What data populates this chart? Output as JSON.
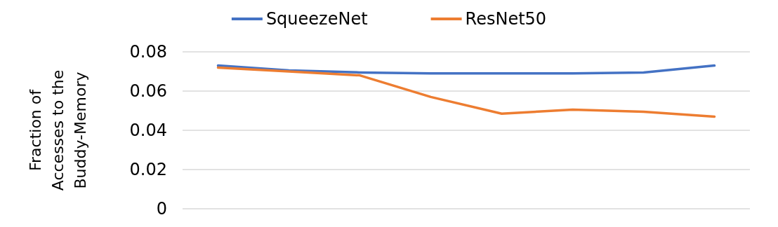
{
  "chart_data": {
    "type": "line",
    "ylabel": "Fraction of\nAccesses to the\nBuddy-Memory",
    "categories": [
      null,
      null,
      null,
      null,
      null,
      null,
      null,
      null
    ],
    "series": [
      {
        "name": "SqueezeNet",
        "color": "#4472c4",
        "values": [
          0.073,
          0.0705,
          0.0695,
          0.069,
          0.069,
          0.069,
          0.0695,
          0.073
        ]
      },
      {
        "name": "ResNet50",
        "color": "#ed7d31",
        "values": [
          0.072,
          0.07,
          0.068,
          0.057,
          0.0485,
          0.0505,
          0.0495,
          0.047
        ]
      }
    ],
    "ylim": [
      0,
      0.08
    ],
    "yticks": [
      0,
      0.02,
      0.04,
      0.06,
      0.08
    ],
    "grid": "y",
    "legend": "top",
    "marker": "none",
    "line_style": "solid"
  }
}
